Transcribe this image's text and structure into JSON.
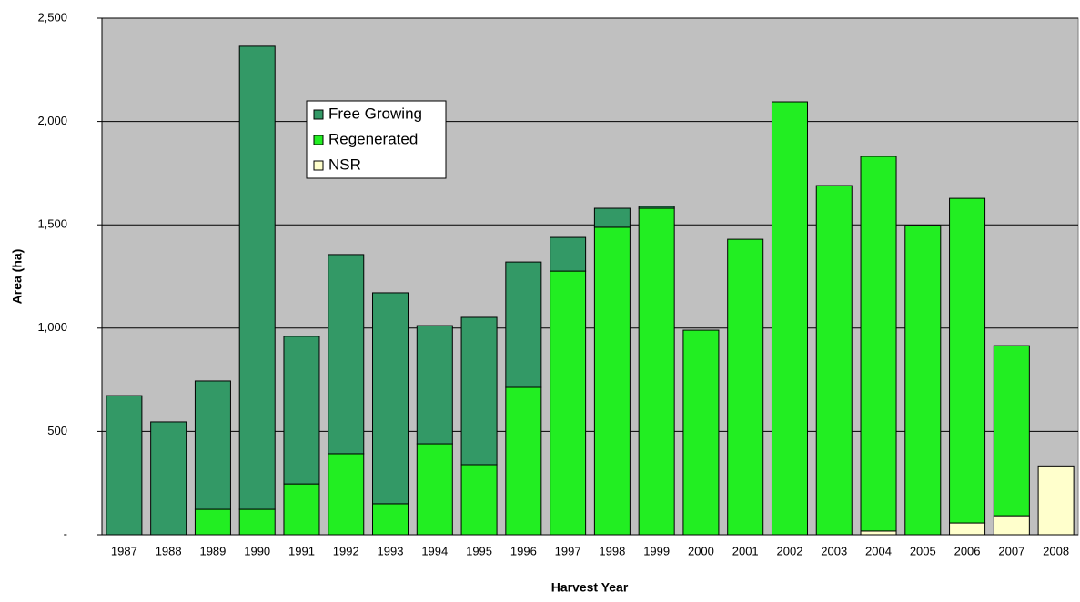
{
  "chart_data": {
    "type": "stacked-bar",
    "x_label": "Harvest Year",
    "y_label": "Area (ha)",
    "categories": [
      "1987",
      "1988",
      "1989",
      "1990",
      "1991",
      "1992",
      "1993",
      "1994",
      "1995",
      "1996",
      "1997",
      "1998",
      "1999",
      "2000",
      "2001",
      "2002",
      "2003",
      "2004",
      "2005",
      "2006",
      "2007",
      "2008"
    ],
    "series": [
      {
        "name": "NSR",
        "color": "#ffffcc",
        "values": [
          null,
          null,
          null,
          null,
          null,
          null,
          null,
          null,
          null,
          null,
          null,
          null,
          null,
          null,
          null,
          null,
          null,
          18,
          null,
          57,
          92,
          333
        ]
      },
      {
        "name": "Regenerated",
        "color": "#22ee22",
        "values": [
          null,
          null,
          123,
          123,
          246,
          392,
          150,
          440,
          339,
          713,
          1276,
          1488,
          1580,
          990,
          1430,
          2095,
          1690,
          1813,
          1496,
          1571,
          823,
          null
        ]
      },
      {
        "name": "Free Growing",
        "color": "#339966",
        "values": [
          673,
          546,
          621,
          2241,
          714,
          964,
          1021,
          572,
          713,
          607,
          163,
          92,
          9,
          null,
          null,
          null,
          null,
          null,
          null,
          null,
          null,
          null
        ]
      }
    ],
    "legend_order": [
      2,
      1,
      0
    ],
    "ylim": [
      0,
      2500
    ],
    "yticks": [
      {
        "value": 0,
        "label": "-"
      },
      500,
      {
        "value": 1000,
        "label": "1,000"
      },
      {
        "value": 1500,
        "label": "1,500"
      },
      {
        "value": 2000,
        "label": "2,000"
      },
      {
        "value": 2500,
        "label": "2,500"
      }
    ],
    "grid": true,
    "background": "#c0c0c0"
  }
}
